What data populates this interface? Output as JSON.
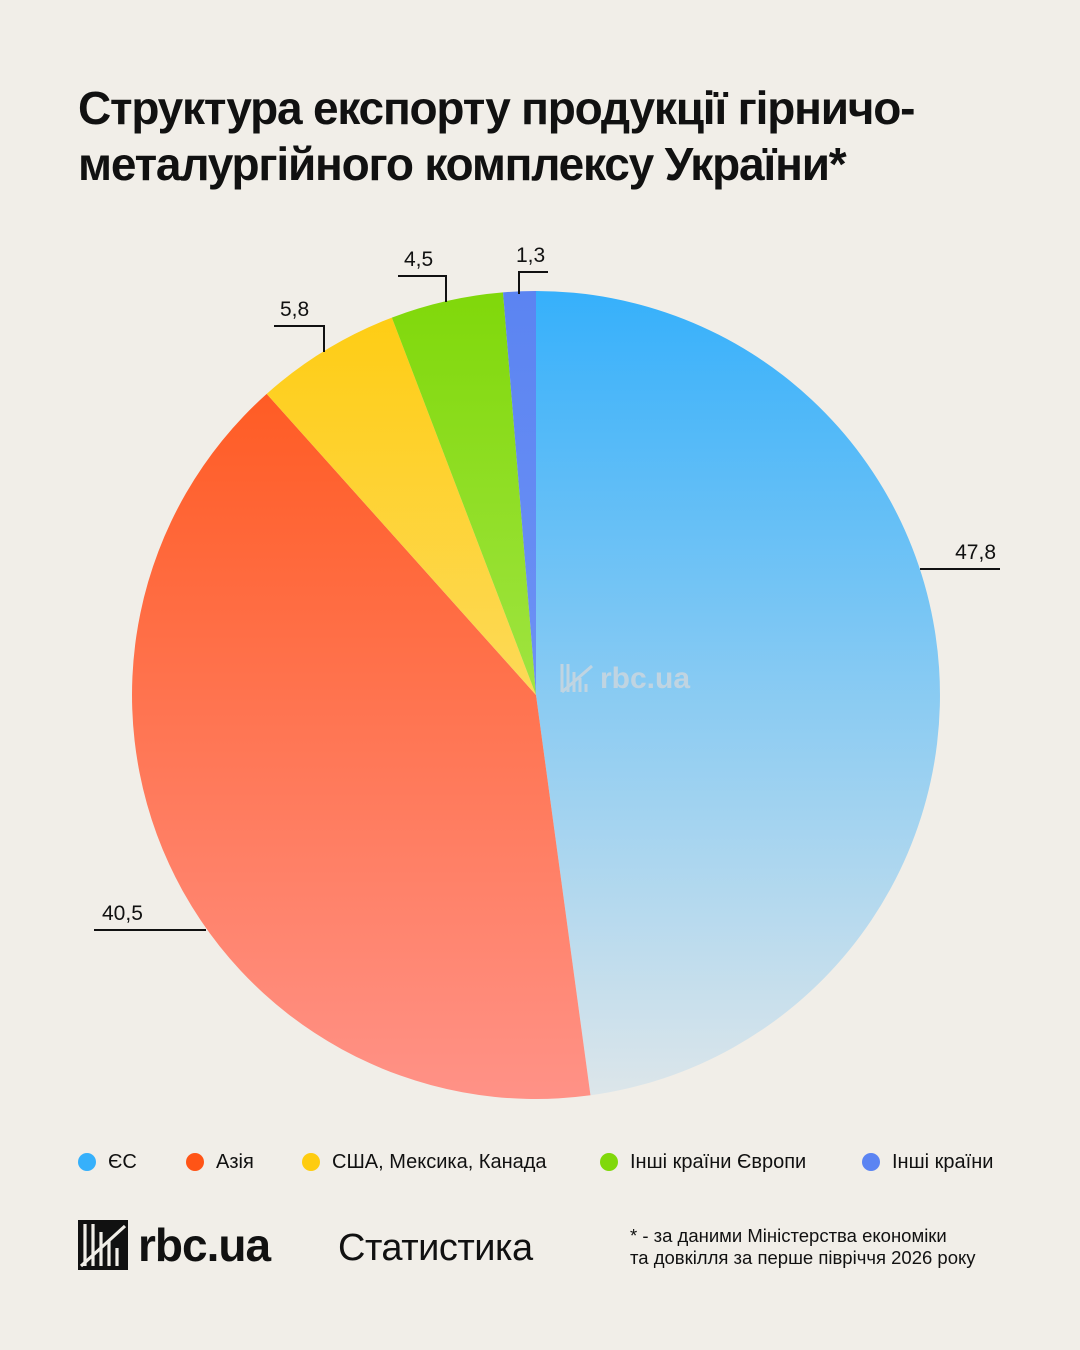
{
  "title": {
    "line1": "Структура експорту продукції гірничо-",
    "line2": "металургійного комплексу України*"
  },
  "chart_data": {
    "type": "pie",
    "categories": [
      "ЄС",
      "Азія",
      "США, Мексика, Канада",
      "Інші країни Європи",
      "Інші країни"
    ],
    "values": [
      47.8,
      40.5,
      5.8,
      4.5,
      1.3
    ],
    "value_labels": [
      "47,8",
      "40,5",
      "5,8",
      "4,5",
      "1,3"
    ],
    "colors": [
      "#36b0fb",
      "#ff5416",
      "#fecc10",
      "#80d80a",
      "#5b84f2"
    ],
    "gradient_end_colors": [
      "#dde6ea",
      "#ff9287",
      "#fce7a0",
      "#bff077",
      "#7f9ff6"
    ],
    "legend_position": "bottom",
    "start_angle": "12 o'clock, clockwise"
  },
  "watermark": {
    "text": "rbc.ua"
  },
  "footer": {
    "logo_text": "rbc.ua",
    "section": "Статистика",
    "note_line1": "* - за даними Міністерства економіки",
    "note_line2": "та довкілля за перше півріччя 2026 року"
  }
}
